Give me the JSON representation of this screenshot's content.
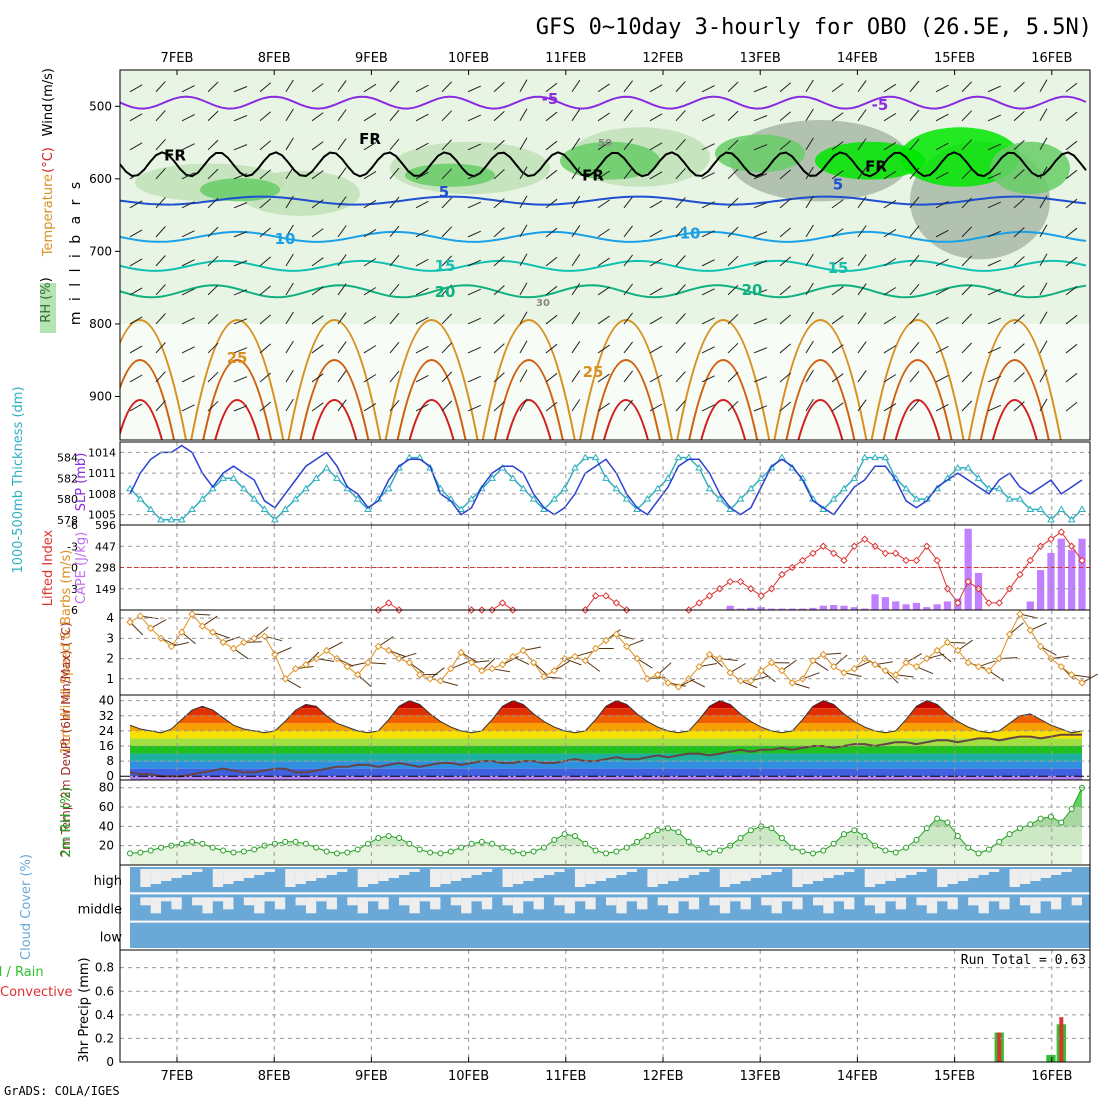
{
  "title": "GFS 0~10day 3-hourly for OBO (26.5E, 5.5N)",
  "footer": "GrADS: COLA/IGES",
  "dates": [
    "7FEB",
    "8FEB",
    "9FEB",
    "10FEB",
    "11FEB",
    "12FEB",
    "13FEB",
    "14FEB",
    "15FEB",
    "16FEB"
  ],
  "colors": {
    "rh_light": "#e8f5e4",
    "rh_mid": "#bfe0b6",
    "rh_green": "#66cc66",
    "rh_bright": "#00e600",
    "rh_grey": "#a8b8a8",
    "fr_line": "#000000",
    "t_neg": "#8a2be2",
    "t_5": "#1f4fd1",
    "t_10": "#1aa0e6",
    "t_15": "#10c0b0",
    "t_20": "#10b080",
    "t_25": "#d89020",
    "t_30": "#d06010",
    "t_35": "#d02020",
    "slp": "#2a40d0",
    "thk": "#30b0c0",
    "li": "#e03030",
    "cape": "#c080ff",
    "wind": "#e09020",
    "rh2m": "#20a020",
    "cloud": "#6aa8d8",
    "cloud_gap": "#eeeeee",
    "precip_total": "#30c030",
    "precip_conv": "#e03030"
  },
  "chart_data": [
    {
      "type": "heatmap",
      "panel": "upper-air cross section",
      "title": "GFS 0~10day 3-hourly for OBO (26.5E, 5.5N)",
      "ylabel": "m i l l i b a r s",
      "side_labels": [
        "RH (%)",
        "Temperature",
        "(°C)",
        "Wind",
        "(m/s)"
      ],
      "y_ticks": [
        500,
        600,
        700,
        800,
        900
      ],
      "ylim": [
        960,
        450
      ],
      "contour_labels": [
        "-5",
        "5",
        "10",
        "15",
        "20",
        "25",
        "30",
        "50",
        "FR"
      ],
      "freezing_level_mb": 580,
      "isotherms_mb": {
        "5": 630,
        "10": 680,
        "15": 720,
        "20": 755,
        "25": 820
      }
    },
    {
      "type": "line",
      "panel": "SLP and thickness",
      "ylabel_left": "1000-500mb Thickness (dm)",
      "ylabel_right": "SLP (mb)",
      "slp_ticks": [
        1014,
        1011,
        1008,
        1005
      ],
      "thk_ticks": [
        584,
        582,
        580,
        578
      ],
      "slp_ylim": [
        1003.5,
        1015.5
      ],
      "thk_ylim": [
        577.5,
        585.5
      ],
      "x_days": 10,
      "series": [
        {
          "name": "SLP",
          "values": [
            1008,
            1011,
            1013,
            1014,
            1014,
            1015,
            1014,
            1011,
            1009,
            1011,
            1012,
            1011,
            1010,
            1007,
            1006,
            1008,
            1010,
            1012,
            1013,
            1014,
            1012,
            1009,
            1008,
            1006,
            1007,
            1010,
            1012,
            1013,
            1013,
            1012,
            1008,
            1007,
            1005,
            1006,
            1009,
            1011,
            1012,
            1012,
            1011,
            1008,
            1006,
            1005,
            1006,
            1008,
            1011,
            1012,
            1013,
            1011,
            1008,
            1006,
            1005,
            1007,
            1009,
            1012,
            1013,
            1013,
            1011,
            1008,
            1006,
            1005,
            1006,
            1009,
            1012,
            1013,
            1012,
            1010,
            1007,
            1006,
            1005,
            1007,
            1009,
            1010,
            1012,
            1012,
            1010,
            1007,
            1006,
            1007,
            1009,
            1010,
            1011,
            1010,
            1009,
            1008,
            1010,
            1011,
            1009,
            1008,
            1009,
            1010,
            1008,
            1009,
            1010
          ]
        },
        {
          "name": "Thickness",
          "values": [
            581,
            580,
            579,
            578,
            578,
            578,
            579,
            580,
            581,
            582,
            582,
            581,
            580,
            579,
            578,
            579,
            580,
            581,
            582,
            583,
            582,
            581,
            580,
            579,
            580,
            581,
            583,
            584,
            584,
            583,
            581,
            580,
            579,
            580,
            581,
            582,
            583,
            582,
            581,
            580,
            579,
            580,
            581,
            583,
            584,
            584,
            582,
            581,
            580,
            579,
            580,
            581,
            582,
            584,
            584,
            583,
            581,
            580,
            579,
            580,
            581,
            582,
            583,
            584,
            583,
            582,
            580,
            579,
            580,
            581,
            582,
            584,
            584,
            584,
            582,
            581,
            580,
            580,
            581,
            582,
            583,
            583,
            582,
            581,
            581,
            580,
            580,
            579,
            579,
            578,
            579,
            578,
            579
          ]
        }
      ]
    },
    {
      "type": "bar",
      "panel": "Lifted Index and CAPE",
      "ylabel_left": "Lifted Index",
      "ylabel_right": "CAPE (J/kg)",
      "li_ticks": [
        -6,
        -3,
        0,
        3,
        6
      ],
      "cape_ticks": [
        596,
        447,
        298,
        149
      ],
      "li_ylim": [
        6,
        -6
      ],
      "cape_ylim": [
        0,
        596
      ],
      "series": [
        {
          "name": "Lifted Index",
          "values": [
            null,
            null,
            null,
            null,
            null,
            null,
            null,
            null,
            null,
            null,
            null,
            null,
            null,
            null,
            null,
            null,
            null,
            null,
            null,
            null,
            null,
            null,
            null,
            null,
            6,
            5,
            6,
            null,
            null,
            null,
            null,
            null,
            null,
            6,
            6,
            6,
            5,
            6,
            null,
            null,
            null,
            null,
            null,
            null,
            6,
            4,
            4,
            5,
            6,
            null,
            null,
            null,
            null,
            null,
            6,
            5,
            4,
            3,
            2,
            2,
            3,
            4,
            3,
            1,
            0,
            -1,
            -2,
            -3,
            -2,
            -1,
            -3,
            -4,
            -3,
            -2,
            -2,
            -1,
            -1,
            -3,
            -1,
            3,
            5,
            2,
            3,
            5,
            5,
            3,
            1,
            -1,
            -3,
            -4,
            -5,
            -3,
            -1
          ]
        },
        {
          "name": "CAPE",
          "values": [
            0,
            0,
            0,
            0,
            0,
            0,
            0,
            0,
            0,
            0,
            0,
            0,
            0,
            0,
            0,
            0,
            0,
            0,
            0,
            0,
            0,
            0,
            0,
            0,
            0,
            0,
            0,
            0,
            0,
            0,
            0,
            0,
            0,
            0,
            0,
            0,
            0,
            0,
            0,
            0,
            0,
            0,
            0,
            0,
            0,
            0,
            0,
            0,
            0,
            0,
            0,
            0,
            0,
            0,
            0,
            0,
            0,
            0,
            30,
            10,
            15,
            20,
            10,
            10,
            10,
            10,
            15,
            30,
            35,
            30,
            20,
            10,
            110,
            90,
            60,
            40,
            50,
            20,
            40,
            60,
            80,
            570,
            260,
            0,
            0,
            0,
            0,
            60,
            280,
            400,
            500,
            420,
            500
          ]
        }
      ]
    },
    {
      "type": "line",
      "panel": "10m wind",
      "ylabel": "10m Wind Speed & Barbs (m/s)",
      "y_ticks": [
        1,
        2,
        3,
        4
      ],
      "ylim": [
        0.2,
        4.4
      ],
      "series": [
        {
          "name": "10m Wind Speed",
          "values": [
            3.8,
            4.1,
            3.5,
            3.0,
            2.6,
            3.3,
            4.2,
            3.6,
            3.3,
            2.8,
            2.5,
            2.8,
            3.0,
            3.1,
            2.2,
            1.0,
            1.5,
            1.7,
            2.0,
            2.4,
            2.0,
            1.6,
            1.2,
            1.8,
            2.6,
            2.4,
            2.0,
            1.8,
            1.2,
            1.0,
            0.9,
            1.5,
            2.3,
            1.8,
            1.4,
            1.5,
            1.7,
            2.1,
            2.4,
            1.8,
            1.1,
            1.4,
            2.0,
            2.1,
            1.9,
            2.5,
            2.9,
            3.2,
            2.6,
            2.0,
            1.0,
            1.2,
            0.8,
            0.6,
            1.0,
            1.6,
            2.2,
            2.0,
            1.3,
            0.9,
            0.9,
            1.4,
            1.8,
            1.4,
            0.8,
            1.0,
            1.9,
            2.2,
            1.6,
            1.3,
            1.5,
            2.0,
            1.7,
            1.4,
            1.2,
            1.8,
            1.6,
            2.0,
            2.4,
            2.8,
            2.4,
            1.8,
            1.6,
            1.4,
            2.0,
            3.2,
            4.2,
            3.4,
            2.6,
            2.0,
            1.6,
            1.2,
            0.8
          ]
        }
      ]
    },
    {
      "type": "area",
      "panel": "2m temperature and dewpoint",
      "ylabel": "2m Temp 2m DewPt (6hr Min/Max) (°C)",
      "y_ticks": [
        0,
        8,
        16,
        24,
        32,
        40
      ],
      "ylim": [
        -2,
        43
      ],
      "series": [
        {
          "name": "2m Temp",
          "values": [
            27,
            25,
            24,
            23,
            25,
            30,
            35,
            37,
            35,
            31,
            27,
            25,
            24,
            23,
            24,
            29,
            35,
            38,
            37,
            32,
            28,
            26,
            24,
            23,
            24,
            30,
            37,
            40,
            38,
            33,
            29,
            26,
            24,
            23,
            24,
            30,
            37,
            40,
            38,
            33,
            29,
            26,
            24,
            23,
            24,
            30,
            37,
            40,
            38,
            33,
            29,
            26,
            24,
            23,
            24,
            30,
            37,
            40,
            38,
            33,
            29,
            26,
            24,
            23,
            24,
            30,
            37,
            40,
            38,
            33,
            29,
            26,
            24,
            23,
            24,
            30,
            37,
            40,
            38,
            33,
            29,
            26,
            24,
            23,
            24,
            28,
            32,
            33,
            30,
            27,
            25,
            23,
            24
          ]
        },
        {
          "name": "2m DewPt",
          "values": [
            2,
            1,
            1,
            0,
            0,
            0,
            1,
            2,
            3,
            4,
            3,
            2,
            2,
            3,
            4,
            4,
            2,
            2,
            3,
            4,
            5,
            5,
            6,
            6,
            5,
            6,
            7,
            6,
            5,
            6,
            7,
            7,
            6,
            7,
            8,
            8,
            7,
            7,
            8,
            8,
            7,
            7,
            8,
            9,
            8,
            8,
            9,
            10,
            9,
            9,
            10,
            11,
            10,
            11,
            12,
            12,
            11,
            12,
            13,
            14,
            13,
            14,
            14,
            15,
            14,
            15,
            16,
            16,
            15,
            16,
            17,
            17,
            16,
            17,
            18,
            18,
            17,
            18,
            19,
            19,
            18,
            19,
            20,
            20,
            19,
            20,
            21,
            21,
            20,
            21,
            22,
            22,
            22
          ]
        }
      ]
    },
    {
      "type": "area",
      "panel": "2m relative humidity",
      "ylabel": "2m RH (%)",
      "y_ticks": [
        20,
        40,
        60,
        80
      ],
      "ylim": [
        0,
        88
      ],
      "series": [
        {
          "name": "2m RH",
          "values": [
            12,
            13,
            15,
            18,
            20,
            22,
            24,
            22,
            18,
            15,
            13,
            14,
            16,
            20,
            22,
            24,
            24,
            22,
            18,
            14,
            12,
            13,
            16,
            22,
            28,
            30,
            28,
            22,
            16,
            13,
            12,
            14,
            18,
            22,
            24,
            22,
            18,
            14,
            12,
            14,
            18,
            26,
            32,
            30,
            22,
            15,
            12,
            14,
            18,
            24,
            30,
            36,
            38,
            34,
            24,
            16,
            13,
            15,
            20,
            28,
            36,
            40,
            38,
            28,
            18,
            14,
            12,
            15,
            22,
            32,
            36,
            30,
            20,
            15,
            13,
            18,
            26,
            38,
            48,
            44,
            30,
            18,
            12,
            16,
            24,
            32,
            38,
            42,
            48,
            50,
            44,
            58,
            80
          ]
        }
      ]
    },
    {
      "type": "table",
      "panel": "cloud cover",
      "ylabel": "Cloud Cover (%)",
      "rows": [
        "high",
        "middle",
        "low"
      ]
    },
    {
      "type": "bar",
      "panel": "3hr precipitation",
      "ylabel": "3hr Precip (mm)",
      "ylabel_left": "Total / Rain",
      "ylabel_conv": "Convective",
      "annotation": "Run Total = 0.63",
      "y_ticks": [
        0,
        0.2,
        0.4,
        0.6,
        0.8
      ],
      "ylim": [
        0,
        0.95
      ],
      "series": [
        {
          "name": "Total",
          "values": [
            0,
            0,
            0,
            0,
            0,
            0,
            0,
            0,
            0,
            0,
            0,
            0,
            0,
            0,
            0,
            0,
            0,
            0,
            0,
            0,
            0,
            0,
            0,
            0,
            0,
            0,
            0,
            0,
            0,
            0,
            0,
            0,
            0,
            0,
            0,
            0,
            0,
            0,
            0,
            0,
            0,
            0,
            0,
            0,
            0,
            0,
            0,
            0,
            0,
            0,
            0,
            0,
            0,
            0,
            0,
            0,
            0,
            0,
            0,
            0,
            0,
            0,
            0,
            0,
            0,
            0,
            0,
            0,
            0,
            0,
            0,
            0,
            0,
            0,
            0,
            0,
            0,
            0,
            0,
            0,
            0,
            0,
            0,
            0,
            0.25,
            0,
            0,
            0,
            0,
            0.06,
            0.32,
            0,
            0
          ]
        },
        {
          "name": "Convective",
          "values": [
            0,
            0,
            0,
            0,
            0,
            0,
            0,
            0,
            0,
            0,
            0,
            0,
            0,
            0,
            0,
            0,
            0,
            0,
            0,
            0,
            0,
            0,
            0,
            0,
            0,
            0,
            0,
            0,
            0,
            0,
            0,
            0,
            0,
            0,
            0,
            0,
            0,
            0,
            0,
            0,
            0,
            0,
            0,
            0,
            0,
            0,
            0,
            0,
            0,
            0,
            0,
            0,
            0,
            0,
            0,
            0,
            0,
            0,
            0,
            0,
            0,
            0,
            0,
            0,
            0,
            0,
            0,
            0,
            0,
            0,
            0,
            0,
            0,
            0,
            0,
            0,
            0,
            0,
            0,
            0,
            0,
            0,
            0,
            0,
            0.25,
            0,
            0,
            0,
            0,
            0,
            0.38,
            0,
            0
          ]
        }
      ]
    }
  ]
}
